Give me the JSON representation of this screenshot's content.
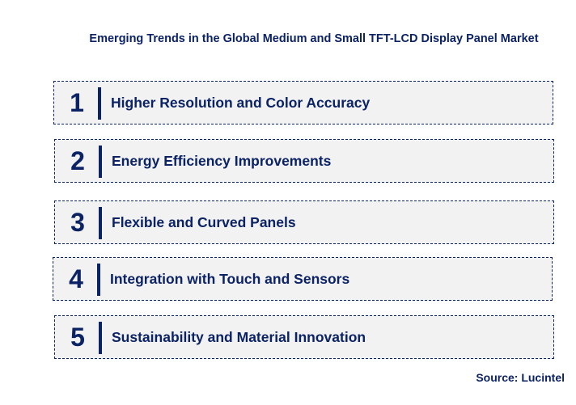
{
  "title": "Emerging Trends in the Global Medium and Small TFT-LCD Display Panel Market",
  "items": [
    {
      "number": "1",
      "label": "Higher Resolution and Color Accuracy"
    },
    {
      "number": "2",
      "label": "Energy Efficiency Improvements"
    },
    {
      "number": "3",
      "label": "Flexible and Curved Panels"
    },
    {
      "number": "4",
      "label": "Integration with Touch and Sensors"
    },
    {
      "number": "5",
      "label": "Sustainability and Material Innovation"
    }
  ],
  "source": "Source: Lucintel",
  "colors": {
    "primary": "#0b2265",
    "box_background": "#f2f2f2"
  }
}
